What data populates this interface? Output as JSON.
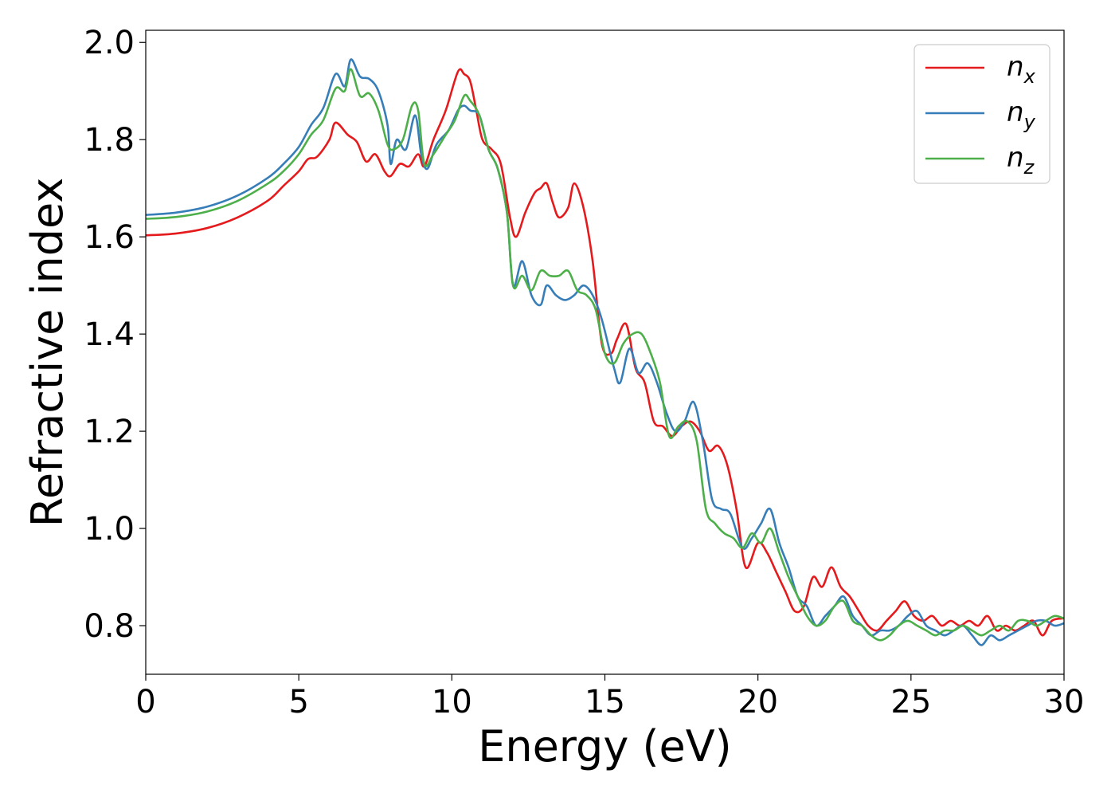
{
  "chart_data": {
    "type": "line",
    "xlabel": "Energy (eV)",
    "ylabel": "Refractive index",
    "xlim": [
      0,
      30
    ],
    "ylim": [
      0.7,
      2.025
    ],
    "xticks": [
      0,
      5,
      10,
      15,
      20,
      25,
      30
    ],
    "xtick_labels": [
      "0",
      "5",
      "10",
      "15",
      "20",
      "25",
      "30"
    ],
    "yticks": [
      0.8,
      1.0,
      1.2,
      1.4,
      1.6,
      1.8,
      2.0
    ],
    "ytick_labels": [
      "0.8",
      "1.0",
      "1.2",
      "1.4",
      "1.6",
      "1.8",
      "2.0"
    ],
    "grid": false,
    "legend_position": "top-right",
    "series": [
      {
        "name": "n",
        "subscript": "x",
        "color": "#e41a1c",
        "x": [
          0,
          1,
          2,
          3,
          4,
          4.5,
          5,
          5.3,
          5.6,
          6.0,
          6.2,
          6.6,
          6.9,
          7.2,
          7.5,
          7.8,
          8.0,
          8.3,
          8.6,
          8.9,
          9.1,
          9.4,
          9.8,
          10.2,
          10.4,
          10.6,
          10.8,
          11.0,
          11.3,
          11.6,
          11.9,
          12.1,
          12.4,
          12.7,
          12.9,
          13.1,
          13.3,
          13.5,
          13.8,
          14.0,
          14.3,
          14.6,
          14.9,
          15.2,
          15.4,
          15.7,
          16.0,
          16.3,
          16.6,
          16.9,
          17.2,
          17.5,
          17.8,
          18.1,
          18.4,
          18.7,
          19.0,
          19.3,
          19.6,
          20.0,
          20.3,
          20.6,
          20.9,
          21.2,
          21.5,
          21.8,
          22.1,
          22.4,
          22.7,
          23.0,
          23.3,
          23.6,
          23.9,
          24.2,
          24.5,
          24.8,
          25.1,
          25.4,
          25.7,
          26.0,
          26.3,
          26.6,
          26.9,
          27.2,
          27.5,
          27.8,
          28.1,
          28.4,
          28.7,
          29.0,
          29.3,
          29.6,
          30.0
        ],
        "y": [
          1.603,
          1.607,
          1.618,
          1.64,
          1.675,
          1.705,
          1.735,
          1.76,
          1.765,
          1.8,
          1.835,
          1.81,
          1.795,
          1.755,
          1.77,
          1.735,
          1.725,
          1.75,
          1.745,
          1.77,
          1.745,
          1.8,
          1.86,
          1.94,
          1.935,
          1.92,
          1.86,
          1.8,
          1.78,
          1.75,
          1.64,
          1.6,
          1.65,
          1.69,
          1.7,
          1.71,
          1.67,
          1.64,
          1.66,
          1.71,
          1.66,
          1.55,
          1.38,
          1.36,
          1.39,
          1.42,
          1.33,
          1.3,
          1.22,
          1.21,
          1.19,
          1.21,
          1.22,
          1.2,
          1.16,
          1.17,
          1.13,
          1.04,
          0.92,
          0.97,
          0.95,
          0.91,
          0.87,
          0.83,
          0.84,
          0.9,
          0.88,
          0.92,
          0.88,
          0.86,
          0.83,
          0.8,
          0.79,
          0.81,
          0.83,
          0.85,
          0.82,
          0.81,
          0.82,
          0.8,
          0.81,
          0.8,
          0.81,
          0.8,
          0.82,
          0.79,
          0.8,
          0.79,
          0.8,
          0.81,
          0.78,
          0.81,
          0.815
        ]
      },
      {
        "name": "n",
        "subscript": "y",
        "color": "#377eb8",
        "x": [
          0,
          1,
          2,
          3,
          4,
          4.5,
          5,
          5.4,
          5.8,
          6.2,
          6.5,
          6.7,
          7.0,
          7.3,
          7.6,
          7.9,
          8.0,
          8.2,
          8.5,
          8.8,
          9.0,
          9.2,
          9.5,
          9.9,
          10.2,
          10.4,
          10.6,
          10.9,
          11.2,
          11.5,
          11.8,
          12.0,
          12.3,
          12.6,
          12.9,
          13.1,
          13.4,
          13.7,
          14.0,
          14.3,
          14.6,
          14.9,
          15.3,
          15.5,
          15.8,
          16.1,
          16.4,
          16.7,
          17.0,
          17.3,
          17.6,
          17.9,
          18.2,
          18.5,
          18.8,
          19.1,
          19.5,
          19.8,
          20.1,
          20.4,
          20.7,
          21.0,
          21.3,
          21.6,
          21.9,
          22.2,
          22.5,
          22.8,
          23.1,
          23.4,
          23.7,
          24.0,
          24.3,
          24.6,
          24.9,
          25.2,
          25.5,
          25.8,
          26.1,
          26.4,
          26.7,
          27.0,
          27.3,
          27.6,
          27.9,
          28.2,
          28.5,
          28.8,
          29.1,
          29.4,
          29.7,
          30.0
        ],
        "y": [
          1.645,
          1.65,
          1.662,
          1.685,
          1.722,
          1.75,
          1.785,
          1.83,
          1.865,
          1.935,
          1.91,
          1.965,
          1.93,
          1.925,
          1.9,
          1.83,
          1.75,
          1.8,
          1.78,
          1.85,
          1.77,
          1.74,
          1.79,
          1.82,
          1.86,
          1.87,
          1.86,
          1.85,
          1.78,
          1.74,
          1.65,
          1.5,
          1.55,
          1.48,
          1.46,
          1.5,
          1.48,
          1.47,
          1.48,
          1.5,
          1.48,
          1.43,
          1.33,
          1.3,
          1.37,
          1.32,
          1.34,
          1.3,
          1.24,
          1.2,
          1.22,
          1.26,
          1.18,
          1.06,
          1.04,
          1.03,
          0.96,
          0.98,
          1.01,
          1.04,
          0.97,
          0.92,
          0.86,
          0.84,
          0.8,
          0.82,
          0.84,
          0.86,
          0.82,
          0.8,
          0.78,
          0.79,
          0.79,
          0.8,
          0.82,
          0.83,
          0.8,
          0.79,
          0.78,
          0.79,
          0.8,
          0.78,
          0.76,
          0.78,
          0.77,
          0.78,
          0.79,
          0.8,
          0.81,
          0.81,
          0.8,
          0.805
        ]
      },
      {
        "name": "n",
        "subscript": "z",
        "color": "#4daf4a",
        "x": [
          0,
          1,
          2,
          3,
          4,
          4.5,
          5,
          5.4,
          5.8,
          6.2,
          6.5,
          6.7,
          7.0,
          7.3,
          7.6,
          7.9,
          8.1,
          8.4,
          8.7,
          8.9,
          9.1,
          9.4,
          9.8,
          10.1,
          10.4,
          10.6,
          10.9,
          11.2,
          11.5,
          11.8,
          12.0,
          12.3,
          12.6,
          12.9,
          13.2,
          13.5,
          13.8,
          14.1,
          14.4,
          14.7,
          15.0,
          15.3,
          15.6,
          15.9,
          16.2,
          16.5,
          16.8,
          17.1,
          17.4,
          17.7,
          18.0,
          18.3,
          18.6,
          18.9,
          19.2,
          19.5,
          19.8,
          20.1,
          20.4,
          20.7,
          21.0,
          21.3,
          21.6,
          21.9,
          22.2,
          22.5,
          22.8,
          23.1,
          23.4,
          23.7,
          24.0,
          24.3,
          24.6,
          24.9,
          25.2,
          25.5,
          25.8,
          26.1,
          26.4,
          26.7,
          27.0,
          27.3,
          27.6,
          27.9,
          28.2,
          28.5,
          28.8,
          29.1,
          29.4,
          29.7,
          30.0
        ],
        "y": [
          1.637,
          1.641,
          1.652,
          1.674,
          1.71,
          1.735,
          1.77,
          1.81,
          1.84,
          1.905,
          1.9,
          1.945,
          1.89,
          1.895,
          1.86,
          1.79,
          1.78,
          1.8,
          1.87,
          1.86,
          1.75,
          1.77,
          1.81,
          1.84,
          1.89,
          1.88,
          1.85,
          1.78,
          1.74,
          1.65,
          1.5,
          1.52,
          1.49,
          1.53,
          1.52,
          1.52,
          1.53,
          1.49,
          1.48,
          1.45,
          1.36,
          1.34,
          1.38,
          1.4,
          1.4,
          1.36,
          1.3,
          1.19,
          1.21,
          1.22,
          1.18,
          1.04,
          1.01,
          0.99,
          0.98,
          0.96,
          0.99,
          0.97,
          1.0,
          0.95,
          0.9,
          0.86,
          0.82,
          0.8,
          0.81,
          0.84,
          0.85,
          0.81,
          0.8,
          0.78,
          0.77,
          0.78,
          0.8,
          0.81,
          0.8,
          0.79,
          0.78,
          0.79,
          0.79,
          0.8,
          0.79,
          0.78,
          0.79,
          0.8,
          0.79,
          0.81,
          0.81,
          0.8,
          0.81,
          0.82,
          0.815
        ]
      }
    ]
  }
}
